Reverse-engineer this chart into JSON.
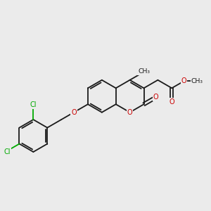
{
  "bg_color": "#ebebeb",
  "bond_color": "#1a1a1a",
  "oxygen_color": "#cc0000",
  "chlorine_color": "#00aa00",
  "line_width": 1.3,
  "figsize": [
    3.0,
    3.0
  ],
  "dpi": 100,
  "xlim": [
    0,
    10
  ],
  "ylim": [
    0,
    10
  ]
}
